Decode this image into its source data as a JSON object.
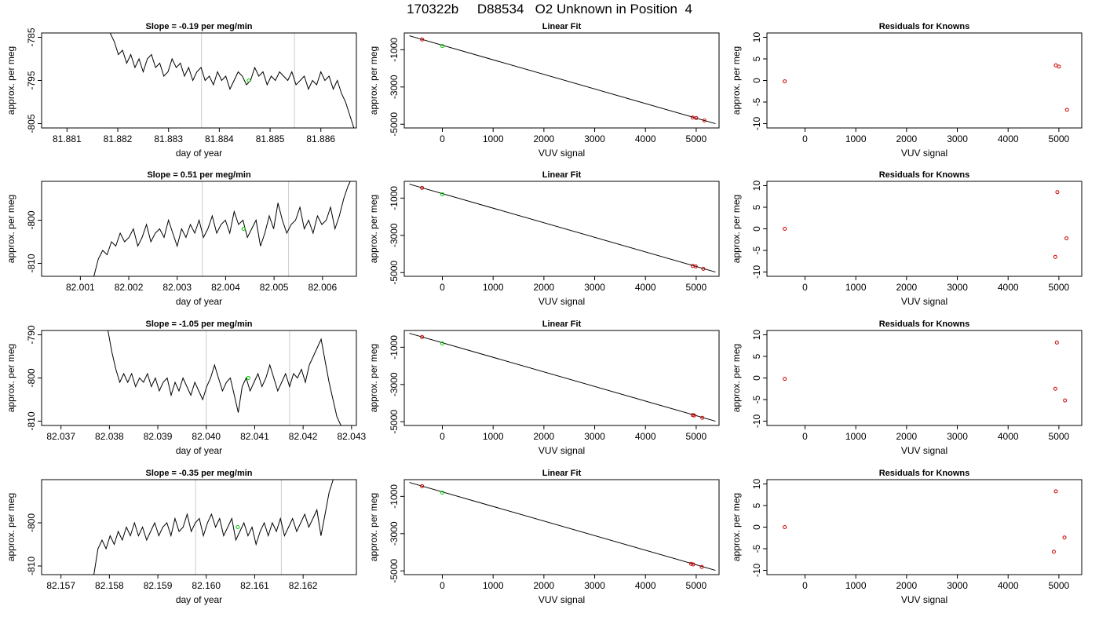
{
  "page": {
    "title": "170322b     D88534   O2 Unknown in Position  4"
  },
  "chart_data": [
    {
      "panel": "timeseries",
      "type": "line",
      "title": "Slope =  -0.19  per meg/min",
      "xlabel": "day of year",
      "ylabel": "approx. per meg",
      "xlim": [
        81.8805,
        81.8867
      ],
      "ylim": [
        -806,
        -784
      ],
      "xticks": [
        81.881,
        81.882,
        81.883,
        81.884,
        81.885,
        81.886
      ],
      "xticklabels": [
        "81.881",
        "81.882",
        "81.883",
        "81.884",
        "81.885",
        "81.886"
      ],
      "yticks": [
        -785,
        -795,
        -805
      ],
      "yticklabels": [
        "-785",
        "-795",
        "-805"
      ],
      "vlines": [
        81.88365,
        81.88548
      ],
      "marker": {
        "x": 81.88458,
        "y": -795,
        "color": "#00cc00"
      },
      "series": [
        {
          "x_start": 81.88185,
          "x_end": 81.88665,
          "y": [
            -784,
            -786,
            -789,
            -788,
            -791,
            -789,
            -792,
            -790,
            -793,
            -790,
            -789,
            -792,
            -791,
            -794,
            -793,
            -790,
            -792,
            -791,
            -794,
            -792,
            -795,
            -793,
            -792,
            -795,
            -794,
            -796,
            -793,
            -795,
            -794,
            -797,
            -795,
            -793,
            -794,
            -796,
            -795,
            -792,
            -794,
            -793,
            -796,
            -794,
            -795,
            -793,
            -794,
            -795,
            -793,
            -796,
            -795,
            -794,
            -797,
            -795,
            -796,
            -793,
            -795,
            -794,
            -797,
            -795,
            -798,
            -800,
            -803,
            -806
          ]
        }
      ]
    },
    {
      "panel": "linear-fit",
      "type": "line",
      "title": "Linear Fit",
      "xlabel": "VUV signal",
      "ylabel": "approx. per meg",
      "xlim": [
        -750,
        5450
      ],
      "ylim": [
        -5200,
        -100
      ],
      "xticks": [
        0,
        1000,
        2000,
        3000,
        4000,
        5000
      ],
      "xticklabels": [
        "0",
        "1000",
        "2000",
        "3000",
        "4000",
        "5000"
      ],
      "yticks": [
        -1000,
        -3000,
        -5000
      ],
      "yticklabels": [
        "-1000",
        "-3000",
        "-5000"
      ],
      "line": [
        [
          -650,
          -250
        ],
        [
          5380,
          -4970
        ]
      ],
      "points": [
        {
          "x": -400,
          "y": -450
        },
        {
          "x": 4930,
          "y": -4640
        },
        {
          "x": 5000,
          "y": -4670
        },
        {
          "x": 5160,
          "y": -4800
        }
      ],
      "marker": {
        "x": 0,
        "y": -800,
        "color": "#00cc00"
      }
    },
    {
      "panel": "residuals",
      "type": "scatter",
      "title": "Residuals for Knowns",
      "xlabel": "VUV signal",
      "ylabel": "approx. per meg",
      "xlim": [
        -750,
        5450
      ],
      "ylim": [
        -11,
        11
      ],
      "xticks": [
        0,
        1000,
        2000,
        3000,
        4000,
        5000
      ],
      "xticklabels": [
        "0",
        "1000",
        "2000",
        "3000",
        "4000",
        "5000"
      ],
      "yticks": [
        10,
        5,
        0,
        -5,
        -10
      ],
      "yticklabels": [
        "10",
        "5",
        "0",
        "-5",
        "-10"
      ],
      "points": [
        {
          "x": -400,
          "y": -0.2
        },
        {
          "x": 4940,
          "y": 3.5
        },
        {
          "x": 5000,
          "y": 3.2
        },
        {
          "x": 5160,
          "y": -6.8
        }
      ]
    },
    {
      "panel": "timeseries",
      "type": "line",
      "title": "Slope =  0.51  per meg/min",
      "xlabel": "day of year",
      "ylabel": "approx. per meg",
      "xlim": [
        82.0002,
        82.0067
      ],
      "ylim": [
        -813,
        -791
      ],
      "xticks": [
        82.001,
        82.002,
        82.003,
        82.004,
        82.005,
        82.006
      ],
      "xticklabels": [
        "82.001",
        "82.002",
        "82.003",
        "82.004",
        "82.005",
        "82.006"
      ],
      "yticks": [
        -800,
        -810
      ],
      "yticklabels": [
        "-800",
        "-810"
      ],
      "vlines": [
        82.00352,
        82.0053
      ],
      "marker": {
        "x": 82.00437,
        "y": -802,
        "color": "#00cc00"
      },
      "series": [
        {
          "x_start": 82.00128,
          "x_end": 82.00662,
          "y": [
            -813,
            -809,
            -807,
            -808,
            -805,
            -806,
            -803,
            -805,
            -804,
            -802,
            -806,
            -804,
            -801,
            -805,
            -803,
            -802,
            -804,
            -800,
            -803,
            -806,
            -802,
            -804,
            -801,
            -803,
            -800,
            -804,
            -802,
            -799,
            -803,
            -801,
            -800,
            -803,
            -798,
            -801,
            -800,
            -804,
            -802,
            -800,
            -806,
            -803,
            -799,
            -802,
            -796,
            -800,
            -803,
            -801,
            -800,
            -797,
            -802,
            -800,
            -803,
            -799,
            -801,
            -800,
            -797,
            -802,
            -799,
            -795,
            -792,
            -790
          ]
        }
      ]
    },
    {
      "panel": "linear-fit",
      "type": "line",
      "title": "Linear Fit",
      "xlabel": "VUV signal",
      "ylabel": "approx. per meg",
      "xlim": [
        -750,
        5450
      ],
      "ylim": [
        -5200,
        -100
      ],
      "xticks": [
        0,
        1000,
        2000,
        3000,
        4000,
        5000
      ],
      "xticklabels": [
        "0",
        "1000",
        "2000",
        "3000",
        "4000",
        "5000"
      ],
      "yticks": [
        -1000,
        -3000,
        -5000
      ],
      "yticklabels": [
        "-1000",
        "-3000",
        "-5000"
      ],
      "line": [
        [
          -650,
          -250
        ],
        [
          5380,
          -4970
        ]
      ],
      "points": [
        {
          "x": -400,
          "y": -450
        },
        {
          "x": 4930,
          "y": -4640
        },
        {
          "x": 4990,
          "y": -4670
        },
        {
          "x": 5140,
          "y": -4800
        }
      ],
      "marker": {
        "x": 0,
        "y": -800,
        "color": "#00cc00"
      }
    },
    {
      "panel": "residuals",
      "type": "scatter",
      "title": "Residuals for Knowns",
      "xlabel": "VUV signal",
      "ylabel": "approx. per meg",
      "xlim": [
        -750,
        5450
      ],
      "ylim": [
        -11,
        11
      ],
      "xticks": [
        0,
        1000,
        2000,
        3000,
        4000,
        5000
      ],
      "xticklabels": [
        "0",
        "1000",
        "2000",
        "3000",
        "4000",
        "5000"
      ],
      "yticks": [
        10,
        5,
        0,
        -5,
        -10
      ],
      "yticklabels": [
        "10",
        "5",
        "0",
        "-5",
        "-10"
      ],
      "points": [
        {
          "x": -400,
          "y": 0
        },
        {
          "x": 4970,
          "y": 8.5
        },
        {
          "x": 4930,
          "y": -6.5
        },
        {
          "x": 5150,
          "y": -2.2
        }
      ]
    },
    {
      "panel": "timeseries",
      "type": "line",
      "title": "Slope =  -1.05  per meg/min",
      "xlabel": "day of year",
      "ylabel": "approx. per meg",
      "xlim": [
        82.0366,
        82.0431
      ],
      "ylim": [
        -811,
        -789
      ],
      "xticks": [
        82.037,
        82.038,
        82.039,
        82.04,
        82.041,
        82.042,
        82.043
      ],
      "xticklabels": [
        "82.037",
        "82.038",
        "82.039",
        "82.040",
        "82.041",
        "82.042",
        "82.043"
      ],
      "yticks": [
        -790,
        -800,
        -810
      ],
      "yticklabels": [
        "-790",
        "-800",
        "-810"
      ],
      "vlines": [
        82.04,
        82.04172
      ],
      "marker": {
        "x": 82.04087,
        "y": -800,
        "color": "#00cc00"
      },
      "series": [
        {
          "x_start": 82.03797,
          "x_end": 82.04278,
          "y": [
            -789,
            -794,
            -798,
            -801,
            -799,
            -801,
            -799,
            -802,
            -800,
            -801,
            -799,
            -802,
            -800,
            -803,
            -801,
            -800,
            -804,
            -801,
            -803,
            -800,
            -802,
            -804,
            -801,
            -803,
            -805,
            -802,
            -800,
            -797,
            -800,
            -803,
            -801,
            -800,
            -804,
            -808,
            -802,
            -800,
            -803,
            -801,
            -799,
            -802,
            -800,
            -797,
            -800,
            -803,
            -801,
            -799,
            -802,
            -799,
            -800,
            -798,
            -801,
            -797,
            -795,
            -793,
            -791,
            -796,
            -801,
            -805,
            -809,
            -811
          ]
        }
      ]
    },
    {
      "panel": "linear-fit",
      "type": "line",
      "title": "Linear Fit",
      "xlabel": "VUV signal",
      "ylabel": "approx. per meg",
      "xlim": [
        -750,
        5450
      ],
      "ylim": [
        -5200,
        -100
      ],
      "xticks": [
        0,
        1000,
        2000,
        3000,
        4000,
        5000
      ],
      "xticklabels": [
        "0",
        "1000",
        "2000",
        "3000",
        "4000",
        "5000"
      ],
      "yticks": [
        -1000,
        -3000,
        -5000
      ],
      "yticklabels": [
        "-1000",
        "-3000",
        "-5000"
      ],
      "line": [
        [
          -650,
          -250
        ],
        [
          5380,
          -4970
        ]
      ],
      "points": [
        {
          "x": -400,
          "y": -450
        },
        {
          "x": 4930,
          "y": -4640
        },
        {
          "x": 4960,
          "y": -4660
        },
        {
          "x": 5120,
          "y": -4790
        }
      ],
      "marker": {
        "x": 0,
        "y": -800,
        "color": "#00cc00"
      }
    },
    {
      "panel": "residuals",
      "type": "scatter",
      "title": "Residuals for Knowns",
      "xlabel": "VUV signal",
      "ylabel": "approx. per meg",
      "xlim": [
        -750,
        5450
      ],
      "ylim": [
        -11,
        11
      ],
      "xticks": [
        0,
        1000,
        2000,
        3000,
        4000,
        5000
      ],
      "xticklabels": [
        "0",
        "1000",
        "2000",
        "3000",
        "4000",
        "5000"
      ],
      "yticks": [
        10,
        5,
        0,
        -5,
        -10
      ],
      "yticklabels": [
        "10",
        "5",
        "0",
        "-5",
        "-10"
      ],
      "points": [
        {
          "x": -400,
          "y": -0.2
        },
        {
          "x": 4960,
          "y": 8.2
        },
        {
          "x": 4930,
          "y": -2.5
        },
        {
          "x": 5120,
          "y": -5.2
        }
      ]
    },
    {
      "panel": "timeseries",
      "type": "line",
      "title": "Slope =  -0.35  per meg/min",
      "xlabel": "day of year",
      "ylabel": "approx. per meg",
      "xlim": [
        82.1566,
        82.1631
      ],
      "ylim": [
        -812,
        -790
      ],
      "xticks": [
        82.157,
        82.158,
        82.159,
        82.16,
        82.161,
        82.162
      ],
      "xticklabels": [
        "82.157",
        "82.158",
        "82.159",
        "82.160",
        "82.161",
        "82.162"
      ],
      "yticks": [
        -800,
        -810
      ],
      "yticklabels": [
        "-800",
        "-810"
      ],
      "vlines": [
        82.15978,
        82.16155
      ],
      "marker": {
        "x": 82.16065,
        "y": -801,
        "color": "#00cc00"
      },
      "series": [
        {
          "x_start": 82.15768,
          "x_end": 82.16262,
          "y": [
            -812,
            -806,
            -804,
            -806,
            -803,
            -805,
            -802,
            -804,
            -801,
            -803,
            -800,
            -803,
            -801,
            -804,
            -802,
            -800,
            -803,
            -801,
            -800,
            -803,
            -799,
            -802,
            -801,
            -798,
            -802,
            -800,
            -799,
            -803,
            -800,
            -798,
            -801,
            -799,
            -803,
            -801,
            -799,
            -804,
            -802,
            -800,
            -803,
            -801,
            -805,
            -802,
            -800,
            -803,
            -800,
            -802,
            -799,
            -803,
            -801,
            -799,
            -802,
            -800,
            -798,
            -801,
            -799,
            -797,
            -803,
            -798,
            -793,
            -790
          ]
        }
      ]
    },
    {
      "panel": "linear-fit",
      "type": "line",
      "title": "Linear Fit",
      "xlabel": "VUV signal",
      "ylabel": "approx. per meg",
      "xlim": [
        -750,
        5450
      ],
      "ylim": [
        -5200,
        -100
      ],
      "xticks": [
        0,
        1000,
        2000,
        3000,
        4000,
        5000
      ],
      "xticklabels": [
        "0",
        "1000",
        "2000",
        "3000",
        "4000",
        "5000"
      ],
      "yticks": [
        -1000,
        -3000,
        -5000
      ],
      "yticklabels": [
        "-1000",
        "-3000",
        "-5000"
      ],
      "line": [
        [
          -650,
          -250
        ],
        [
          5380,
          -4970
        ]
      ],
      "points": [
        {
          "x": -400,
          "y": -450
        },
        {
          "x": 4900,
          "y": -4620
        },
        {
          "x": 4940,
          "y": -4650
        },
        {
          "x": 5110,
          "y": -4790
        }
      ],
      "marker": {
        "x": 0,
        "y": -800,
        "color": "#00cc00"
      }
    },
    {
      "panel": "residuals",
      "type": "scatter",
      "title": "Residuals for Knowns",
      "xlabel": "VUV signal",
      "ylabel": "approx. per meg",
      "xlim": [
        -750,
        5450
      ],
      "ylim": [
        -11,
        11
      ],
      "xticks": [
        0,
        1000,
        2000,
        3000,
        4000,
        5000
      ],
      "xticklabels": [
        "0",
        "1000",
        "2000",
        "3000",
        "4000",
        "5000"
      ],
      "yticks": [
        10,
        5,
        0,
        -5,
        -10
      ],
      "yticklabels": [
        "10",
        "5",
        "0",
        "-5",
        "-10"
      ],
      "points": [
        {
          "x": -400,
          "y": 0
        },
        {
          "x": 4940,
          "y": 8.3
        },
        {
          "x": 4900,
          "y": -5.7
        },
        {
          "x": 5110,
          "y": -2.4
        }
      ]
    }
  ],
  "colors": {
    "line": "#000000",
    "points": "#cc0000",
    "marker": "#00cc00",
    "vline": "#cccccc"
  }
}
